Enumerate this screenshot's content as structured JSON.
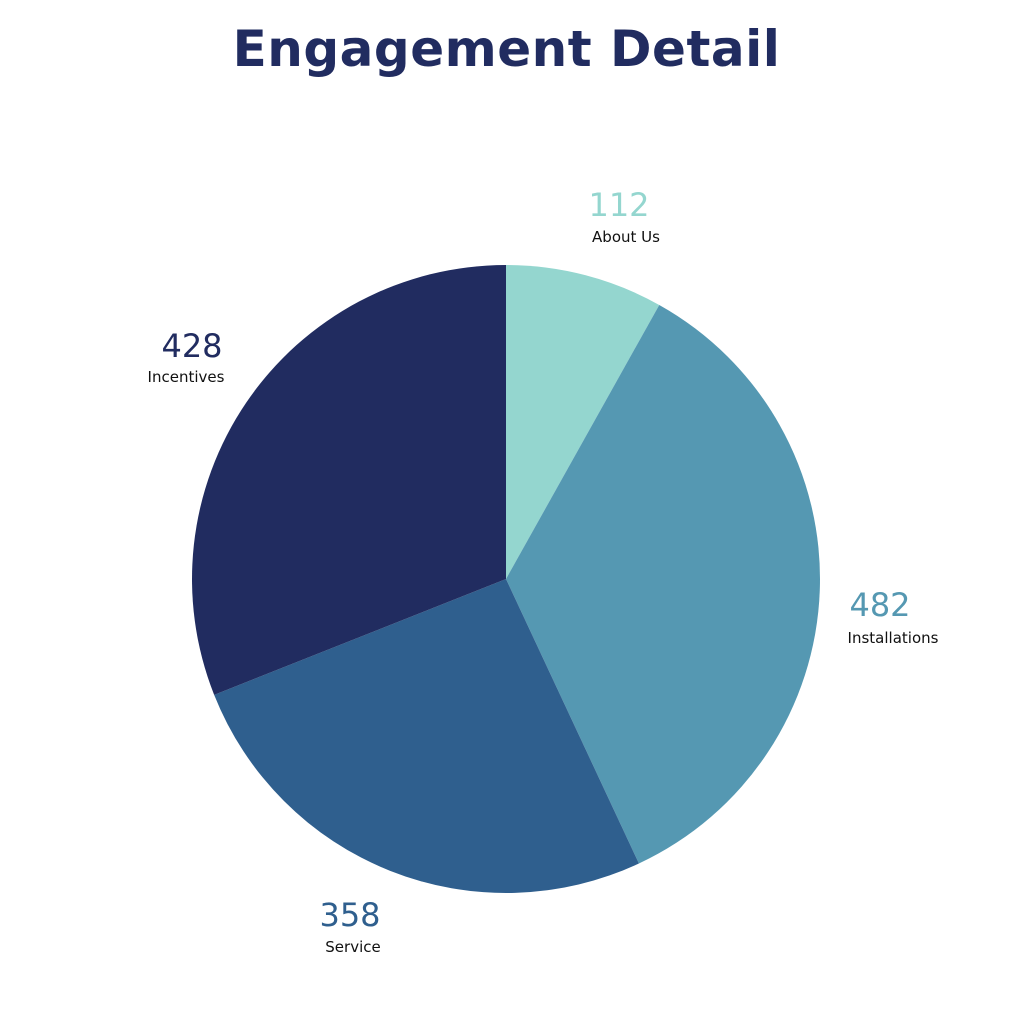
{
  "chart_data": {
    "type": "pie",
    "title": "Engagement Detail",
    "categories": [
      "About Us",
      "Installations",
      "Service",
      "Incentives"
    ],
    "values": [
      112,
      482,
      358,
      428
    ],
    "value_labels": [
      "112",
      "482",
      "358",
      "428"
    ],
    "colors": [
      "#94d6cf",
      "#5598b2",
      "#2f5f8e",
      "#212c60"
    ],
    "start": "12 o'clock",
    "direction": "clockwise",
    "legend": "none"
  }
}
